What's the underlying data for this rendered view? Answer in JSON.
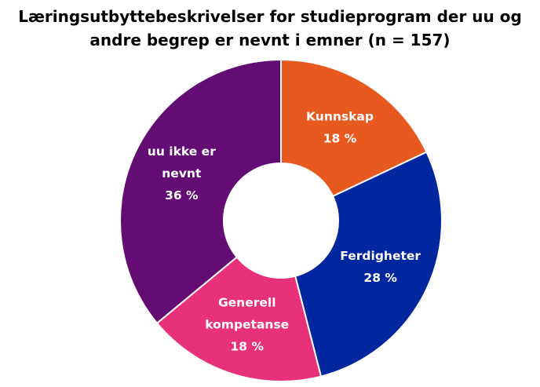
{
  "chart_data": {
    "type": "pie",
    "title_lines": [
      "Læringsutbyttebeskrivelser for studieprogram der uu og",
      "andre begrep er nevnt i emner (n = 157)"
    ],
    "donut": true,
    "slices": [
      {
        "label_lines": [
          "Kunnskap"
        ],
        "value": 18,
        "value_label": "18 %",
        "color": "#E8591F"
      },
      {
        "label_lines": [
          "Ferdigheter"
        ],
        "value": 28,
        "value_label": "28 %",
        "color": "#0026A0"
      },
      {
        "label_lines": [
          "Generell",
          "kompetanse"
        ],
        "value": 18,
        "value_label": "18 %",
        "color": "#E8317A"
      },
      {
        "label_lines": [
          "uu ikke er",
          "nevnt"
        ],
        "value": 36,
        "value_label": "36 %",
        "color": "#620C74"
      }
    ]
  }
}
